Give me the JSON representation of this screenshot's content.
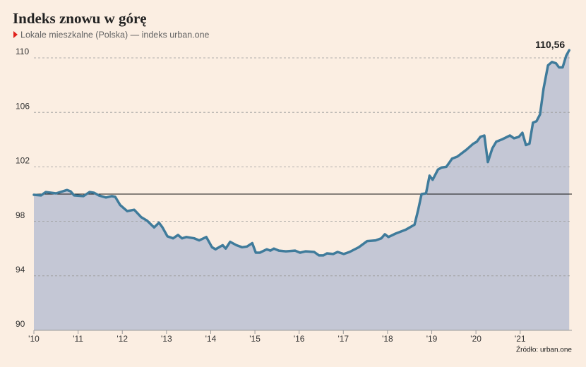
{
  "chart_data": {
    "type": "area",
    "title": "Indeks znowu w górę",
    "subtitle": "Lokale mieszkalne (Polska) — indeks urban.one",
    "source": "Źródło: urban.one",
    "color": "#3f7b9b",
    "fill": "#c4c7d5",
    "grid": true,
    "baseline": 100,
    "xlim": [
      2010,
      2022.17
    ],
    "ylim": [
      90,
      111
    ],
    "yticks": [
      90,
      94,
      98,
      102,
      106,
      110
    ],
    "xticks": [
      {
        "value": 2010,
        "label": "'10"
      },
      {
        "value": 2011,
        "label": "'11"
      },
      {
        "value": 2012,
        "label": "'12"
      },
      {
        "value": 2013,
        "label": "'13"
      },
      {
        "value": 2014,
        "label": "'14"
      },
      {
        "value": 2015,
        "label": "'15"
      },
      {
        "value": 2016,
        "label": "'16"
      },
      {
        "value": 2017,
        "label": "'17"
      },
      {
        "value": 2018,
        "label": "'18"
      },
      {
        "value": 2019,
        "label": "'19"
      },
      {
        "value": 2020,
        "label": "'20"
      },
      {
        "value": 2021,
        "label": "'21"
      }
    ],
    "x": [
      2010.0,
      2010.16,
      2010.27,
      2010.5,
      2010.75,
      2010.83,
      2010.91,
      2011.12,
      2011.26,
      2011.36,
      2011.47,
      2011.63,
      2011.76,
      2011.84,
      2011.95,
      2012.11,
      2012.27,
      2012.43,
      2012.56,
      2012.72,
      2012.83,
      2012.91,
      2013.02,
      2013.15,
      2013.26,
      2013.35,
      2013.45,
      2013.63,
      2013.74,
      2013.9,
      2014.03,
      2014.11,
      2014.27,
      2014.34,
      2014.44,
      2014.58,
      2014.71,
      2014.82,
      2014.94,
      2015.02,
      2015.11,
      2015.27,
      2015.35,
      2015.43,
      2015.54,
      2015.7,
      2015.91,
      2016.02,
      2016.15,
      2016.34,
      2016.45,
      2016.55,
      2016.63,
      2016.77,
      2016.87,
      2017.01,
      2017.14,
      2017.35,
      2017.54,
      2017.73,
      2017.86,
      2017.94,
      2018.02,
      2018.18,
      2018.42,
      2018.61,
      2018.69,
      2018.77,
      2018.87,
      2018.95,
      2019.02,
      2019.14,
      2019.22,
      2019.33,
      2019.46,
      2019.58,
      2019.78,
      2019.94,
      2020.02,
      2020.1,
      2020.19,
      2020.27,
      2020.37,
      2020.46,
      2020.58,
      2020.77,
      2020.86,
      2020.97,
      2021.05,
      2021.13,
      2021.21,
      2021.29,
      2021.37,
      2021.45,
      2021.53,
      2021.63,
      2021.72,
      2021.81,
      2021.88,
      2021.96,
      2022.04,
      2022.11
    ],
    "values": [
      99.95,
      99.9,
      100.15,
      100.05,
      100.3,
      100.2,
      99.9,
      99.85,
      100.15,
      100.1,
      99.9,
      99.75,
      99.85,
      99.8,
      99.2,
      98.75,
      98.85,
      98.3,
      98.05,
      97.55,
      97.9,
      97.55,
      96.9,
      96.75,
      97.0,
      96.75,
      96.85,
      96.75,
      96.6,
      96.85,
      96.1,
      95.95,
      96.25,
      96.0,
      96.5,
      96.25,
      96.1,
      96.15,
      96.4,
      95.7,
      95.7,
      95.95,
      95.85,
      96.0,
      95.85,
      95.8,
      95.85,
      95.7,
      95.8,
      95.75,
      95.5,
      95.5,
      95.65,
      95.6,
      95.75,
      95.6,
      95.75,
      96.1,
      96.55,
      96.6,
      96.75,
      97.05,
      96.85,
      97.1,
      97.4,
      97.75,
      98.8,
      100.0,
      100.05,
      101.35,
      101.05,
      101.8,
      101.95,
      102.0,
      102.6,
      102.75,
      103.25,
      103.7,
      103.85,
      104.2,
      104.3,
      102.35,
      103.35,
      103.85,
      104.0,
      104.3,
      104.1,
      104.2,
      104.5,
      103.6,
      103.7,
      105.25,
      105.35,
      105.85,
      107.75,
      109.45,
      109.7,
      109.6,
      109.3,
      109.3,
      110.15,
      110.56
    ],
    "value_labels": [
      null,
      null,
      null,
      null,
      null,
      null,
      null,
      null,
      null,
      null,
      null,
      null,
      null,
      null,
      null,
      null,
      null,
      null,
      null,
      null,
      null,
      null,
      null,
      null,
      null,
      null,
      null,
      null,
      null,
      null,
      null,
      null,
      null,
      null,
      null,
      null,
      null,
      null,
      null,
      null,
      null,
      null,
      null,
      null,
      null,
      null,
      null,
      null,
      null,
      null,
      null,
      null,
      null,
      null,
      null,
      null,
      null,
      null,
      null,
      null,
      null,
      null,
      null,
      null,
      null,
      null,
      null,
      null,
      null,
      null,
      null,
      null,
      null,
      null,
      null,
      null,
      null,
      null,
      null,
      null,
      null,
      null,
      null,
      null,
      null,
      null,
      null,
      null,
      null,
      null,
      null,
      null,
      null,
      null,
      null,
      null,
      null,
      null,
      null,
      null,
      null,
      "110,56"
    ]
  }
}
